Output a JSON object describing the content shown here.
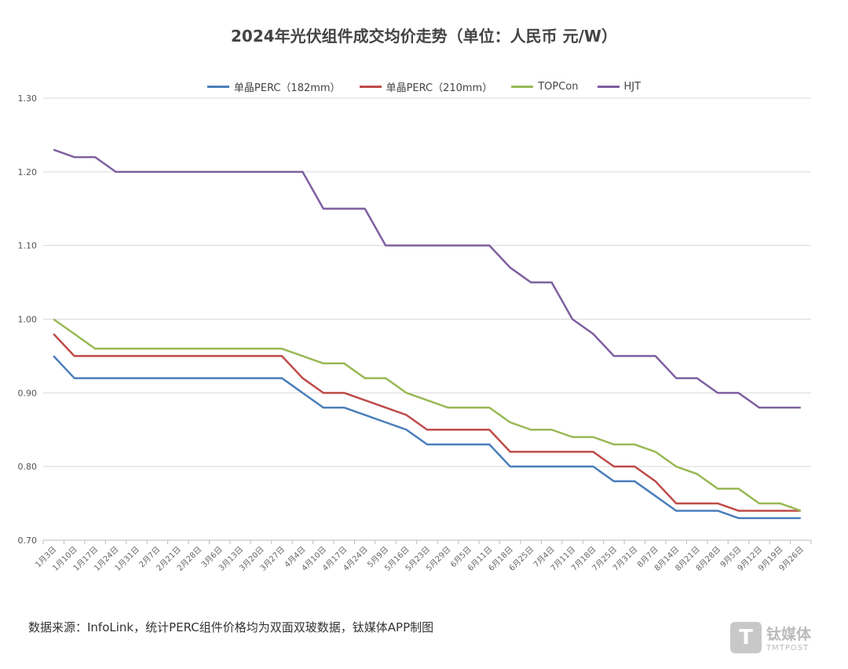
{
  "chart_data": {
    "type": "line",
    "title": "2024年光伏组件成交均价走势（单位：人民币 元/W）",
    "xlabel": "",
    "ylabel": "",
    "ylim": [
      0.7,
      1.3
    ],
    "yticks": [
      "0.70",
      "0.80",
      "0.90",
      "1.00",
      "1.10",
      "1.20",
      "1.30"
    ],
    "grid": true,
    "legend_position": "top",
    "categories": [
      "1月3日",
      "1月10日",
      "1月17日",
      "1月24日",
      "1月31日",
      "2月7日",
      "2月21日",
      "2月28日",
      "3月6日",
      "3月13日",
      "3月20日",
      "3月27日",
      "4月4日",
      "4月10日",
      "4月17日",
      "4月24日",
      "5月9日",
      "5月16日",
      "5月23日",
      "5月29日",
      "6月5日",
      "6月11日",
      "6月18日",
      "6月25日",
      "7月4日",
      "7月11日",
      "7月18日",
      "7月25日",
      "7月31日",
      "8月7日",
      "8月14日",
      "8月21日",
      "8月28日",
      "9月5日",
      "9月12日",
      "9月19日",
      "9月26日"
    ],
    "series": [
      {
        "name": "单晶PERC（182mm）",
        "color": "#4a7ebb",
        "values": [
          0.95,
          0.92,
          0.92,
          0.92,
          0.92,
          0.92,
          0.92,
          0.92,
          0.92,
          0.92,
          0.92,
          0.92,
          0.9,
          0.88,
          0.88,
          0.87,
          0.86,
          0.85,
          0.83,
          0.83,
          0.83,
          0.83,
          0.8,
          0.8,
          0.8,
          0.8,
          0.8,
          0.78,
          0.78,
          0.76,
          0.74,
          0.74,
          0.74,
          0.73,
          0.73,
          0.73,
          0.73
        ]
      },
      {
        "name": "单晶PERC（210mm）",
        "color": "#be4b48",
        "values": [
          0.98,
          0.95,
          0.95,
          0.95,
          0.95,
          0.95,
          0.95,
          0.95,
          0.95,
          0.95,
          0.95,
          0.95,
          0.92,
          0.9,
          0.9,
          0.89,
          0.88,
          0.87,
          0.85,
          0.85,
          0.85,
          0.85,
          0.82,
          0.82,
          0.82,
          0.82,
          0.82,
          0.8,
          0.8,
          0.78,
          0.75,
          0.75,
          0.75,
          0.74,
          0.74,
          0.74,
          0.74
        ]
      },
      {
        "name": "TOPCon",
        "color": "#98b954",
        "values": [
          1.0,
          0.98,
          0.96,
          0.96,
          0.96,
          0.96,
          0.96,
          0.96,
          0.96,
          0.96,
          0.96,
          0.96,
          0.95,
          0.94,
          0.94,
          0.92,
          0.92,
          0.9,
          0.89,
          0.88,
          0.88,
          0.88,
          0.86,
          0.85,
          0.85,
          0.84,
          0.84,
          0.83,
          0.83,
          0.82,
          0.8,
          0.79,
          0.77,
          0.77,
          0.75,
          0.75,
          0.74
        ]
      },
      {
        "name": "HJT",
        "color": "#7d60a0",
        "values": [
          1.23,
          1.22,
          1.22,
          1.2,
          1.2,
          1.2,
          1.2,
          1.2,
          1.2,
          1.2,
          1.2,
          1.2,
          1.2,
          1.15,
          1.15,
          1.15,
          1.1,
          1.1,
          1.1,
          1.1,
          1.1,
          1.1,
          1.07,
          1.05,
          1.05,
          1.0,
          0.98,
          0.95,
          0.95,
          0.95,
          0.92,
          0.92,
          0.9,
          0.9,
          0.88,
          0.88,
          0.88
        ]
      }
    ]
  },
  "footer": {
    "source": "数据来源：InfoLink，统计PERC组件价格均为双面双玻数据，钛媒体APP制图"
  },
  "watermark": {
    "mark": "T",
    "cn": "钛媒体",
    "en": "TMTPOST"
  }
}
